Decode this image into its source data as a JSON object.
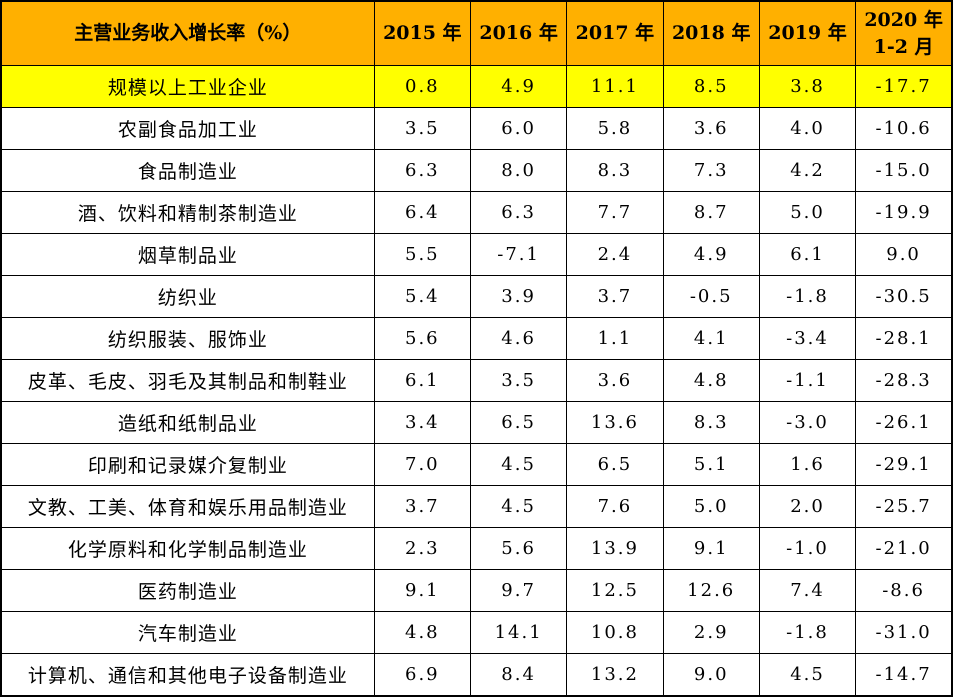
{
  "colors": {
    "header_bg": "#FFB000",
    "highlight_row_bg": "#FFFF00",
    "border": "#000000",
    "text": "#000000"
  },
  "chart_data": {
    "type": "table",
    "title": "主营业务收入增长率（%）",
    "categories": [
      "2015 年",
      "2016 年",
      "2017 年",
      "2018 年",
      "2019 年",
      "2020 年 1-2 月"
    ],
    "last_category_lines": [
      "2020 年",
      "1-2 月"
    ],
    "highlight_row_index": 0,
    "rows": [
      {
        "label": "规模以上工业企业",
        "values": [
          "0.8",
          "4.9",
          "11.1",
          "8.5",
          "3.8",
          "-17.7"
        ]
      },
      {
        "label": "农副食品加工业",
        "values": [
          "3.5",
          "6.0",
          "5.8",
          "3.6",
          "4.0",
          "-10.6"
        ]
      },
      {
        "label": "食品制造业",
        "values": [
          "6.3",
          "8.0",
          "8.3",
          "7.3",
          "4.2",
          "-15.0"
        ]
      },
      {
        "label": "酒、饮料和精制茶制造业",
        "values": [
          "6.4",
          "6.3",
          "7.7",
          "8.7",
          "5.0",
          "-19.9"
        ]
      },
      {
        "label": "烟草制品业",
        "values": [
          "5.5",
          "-7.1",
          "2.4",
          "4.9",
          "6.1",
          "9.0"
        ]
      },
      {
        "label": "纺织业",
        "values": [
          "5.4",
          "3.9",
          "3.7",
          "-0.5",
          "-1.8",
          "-30.5"
        ]
      },
      {
        "label": "纺织服装、服饰业",
        "values": [
          "5.6",
          "4.6",
          "1.1",
          "4.1",
          "-3.4",
          "-28.1"
        ]
      },
      {
        "label": "皮革、毛皮、羽毛及其制品和制鞋业",
        "values": [
          "6.1",
          "3.5",
          "3.6",
          "4.8",
          "-1.1",
          "-28.3"
        ]
      },
      {
        "label": "造纸和纸制品业",
        "values": [
          "3.4",
          "6.5",
          "13.6",
          "8.3",
          "-3.0",
          "-26.1"
        ]
      },
      {
        "label": "印刷和记录媒介复制业",
        "values": [
          "7.0",
          "4.5",
          "6.5",
          "5.1",
          "1.6",
          "-29.1"
        ]
      },
      {
        "label": "文教、工美、体育和娱乐用品制造业",
        "values": [
          "3.7",
          "4.5",
          "7.6",
          "5.0",
          "2.0",
          "-25.7"
        ]
      },
      {
        "label": "化学原料和化学制品制造业",
        "values": [
          "2.3",
          "5.6",
          "13.9",
          "9.1",
          "-1.0",
          "-21.0"
        ]
      },
      {
        "label": "医药制造业",
        "values": [
          "9.1",
          "9.7",
          "12.5",
          "12.6",
          "7.4",
          "-8.6"
        ]
      },
      {
        "label": "汽车制造业",
        "values": [
          "4.8",
          "14.1",
          "10.8",
          "2.9",
          "-1.8",
          "-31.0"
        ]
      },
      {
        "label": "计算机、通信和其他电子设备制造业",
        "values": [
          "6.9",
          "8.4",
          "13.2",
          "9.0",
          "4.5",
          "-14.7"
        ]
      }
    ]
  }
}
